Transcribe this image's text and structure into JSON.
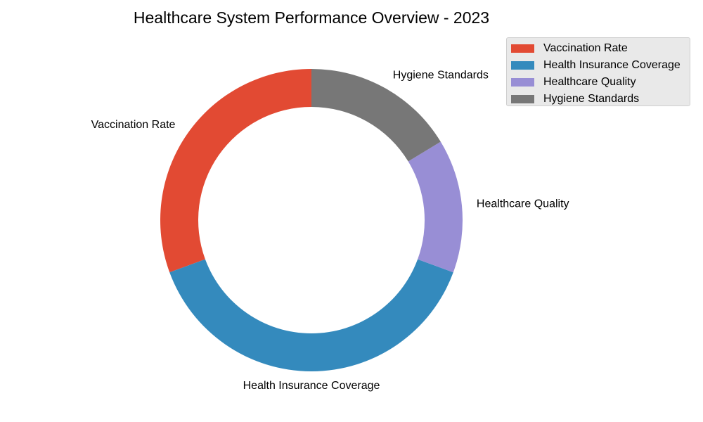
{
  "chart_data": {
    "type": "pie",
    "title": "Healthcare System Performance Overview - 2023",
    "categories": [
      "Vaccination Rate",
      "Health Insurance Coverage",
      "Healthcare Quality",
      "Hygiene Standards"
    ],
    "values": [
      30,
      38,
      14,
      16
    ],
    "colors": [
      "#E24A33",
      "#348ABD",
      "#988ED5",
      "#777777"
    ],
    "start_angle_deg": 90,
    "direction": "counterclockwise",
    "legend_position": "upper-right",
    "style": "donut"
  }
}
